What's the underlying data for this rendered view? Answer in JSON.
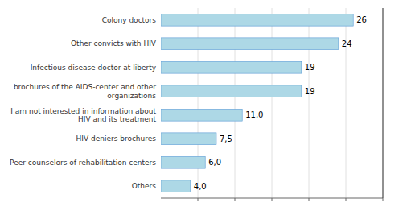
{
  "chart_data": {
    "type": "bar",
    "orientation": "horizontal",
    "categories": [
      "Others",
      "Peer counselors of rehabilitation centers",
      "HIV deniers brochures",
      "I am not interested in information about HIV and its treatment",
      "brochures of the AIDS-center and other organizations",
      "Infectious disease doctor at liberty",
      "Other convicts with HIV",
      "Colony doctors"
    ],
    "values": [
      4.0,
      6.0,
      7.5,
      11.0,
      19.0,
      19.0,
      24.0,
      26.0
    ],
    "value_labels": [
      "4,0",
      "6,0",
      "7,5",
      "11,0",
      "19",
      "19",
      "24",
      "26"
    ],
    "data_labels": true,
    "color": "#add8e6",
    "xlim": [
      0,
      30
    ],
    "xticks": [
      5,
      10,
      15,
      20,
      25,
      30
    ],
    "grid": true,
    "tick_labels": "y"
  }
}
